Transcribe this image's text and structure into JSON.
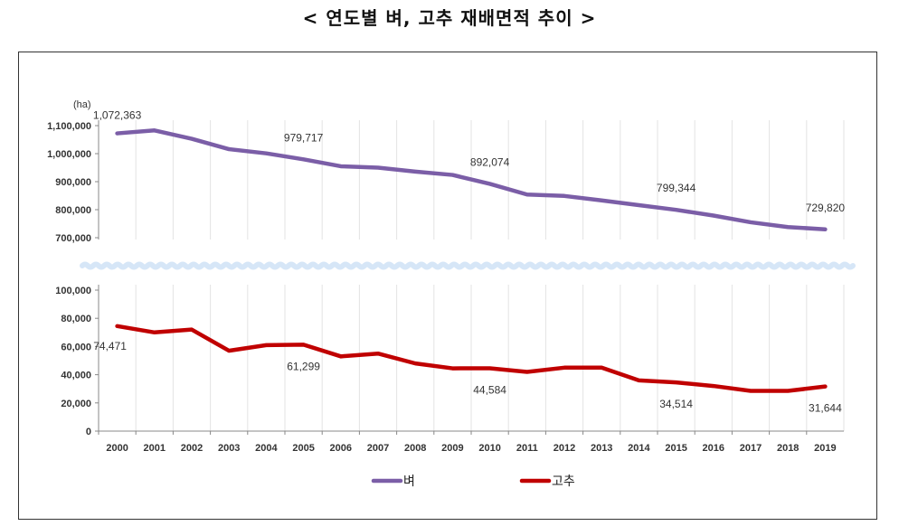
{
  "title": "< 연도별 벼, 고추 재배면적 추이 >",
  "chart_data": {
    "type": "line",
    "title": "< 연도별 벼, 고추 재배면적 추이 >",
    "unit": "(ha)",
    "x": [
      "2000",
      "2001",
      "2002",
      "2003",
      "2004",
      "2005",
      "2006",
      "2007",
      "2008",
      "2009",
      "2010",
      "2011",
      "2012",
      "2013",
      "2014",
      "2015",
      "2016",
      "2017",
      "2018",
      "2019"
    ],
    "broken_y_axis": true,
    "upper_axis": {
      "ylim": [
        700000,
        1100000
      ],
      "ticks": [
        "700,000",
        "800,000",
        "900,000",
        "1,000,000",
        "1,100,000"
      ]
    },
    "lower_axis": {
      "ylim": [
        0,
        100000
      ],
      "ticks": [
        "0",
        "20,000",
        "40,000",
        "60,000",
        "80,000",
        "100,000"
      ]
    },
    "legend_position": "bottom",
    "series": [
      {
        "name": "벼",
        "color": "#7b5ea7",
        "axis": "upper",
        "values": [
          1072363,
          1083000,
          1053000,
          1016000,
          1001000,
          979717,
          955000,
          950000,
          936000,
          924000,
          892074,
          854000,
          849000,
          833000,
          816000,
          799344,
          779000,
          755000,
          738000,
          729820
        ],
        "data_labels": [
          {
            "index": 0,
            "text": "1,072,363"
          },
          {
            "index": 5,
            "text": "979,717"
          },
          {
            "index": 10,
            "text": "892,074"
          },
          {
            "index": 15,
            "text": "799,344"
          },
          {
            "index": 19,
            "text": "729,820"
          }
        ]
      },
      {
        "name": "고추",
        "color": "#c00000",
        "axis": "lower",
        "values": [
          74471,
          70000,
          72000,
          57000,
          61000,
          61299,
          53000,
          55000,
          48000,
          44500,
          44584,
          42000,
          45000,
          45000,
          36000,
          34514,
          32000,
          28500,
          28500,
          31644
        ],
        "data_labels": [
          {
            "index": 0,
            "text": "74,471"
          },
          {
            "index": 5,
            "text": "61,299"
          },
          {
            "index": 10,
            "text": "44,584"
          },
          {
            "index": 15,
            "text": "34,514"
          },
          {
            "index": 19,
            "text": "31,644"
          }
        ]
      }
    ]
  }
}
